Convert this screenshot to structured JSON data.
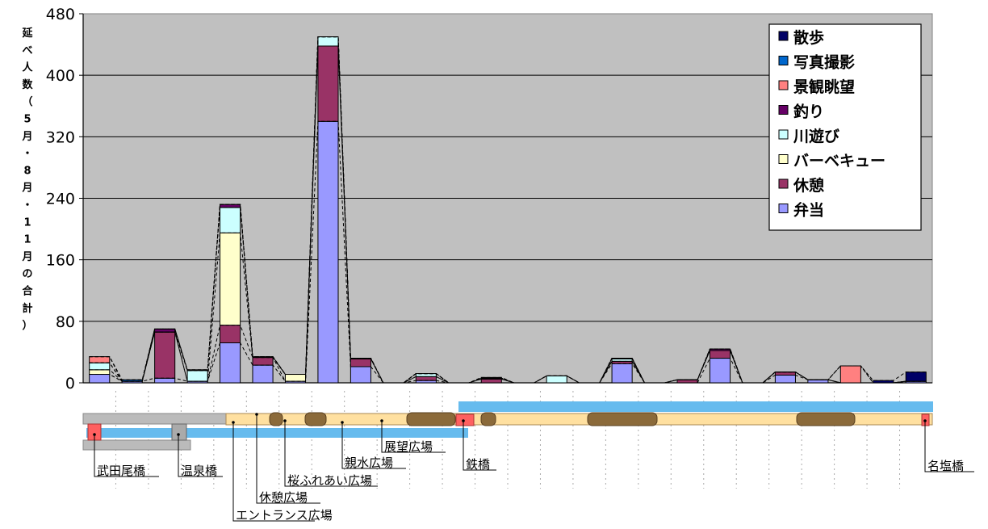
{
  "chart_data": {
    "type": "bar",
    "stacked": true,
    "ylabel": "延べ人数（5月・8月・11月の合計）",
    "ylim": [
      0,
      480
    ],
    "yticks": [
      "0",
      "80",
      "160",
      "240",
      "320",
      "400",
      "480"
    ],
    "grid": true,
    "legend_position": "top-right",
    "category_count": 26,
    "series": [
      {
        "name": "弁当",
        "color": "#9999ff",
        "values": [
          11,
          2,
          6,
          2,
          52,
          23,
          2,
          340,
          21,
          0,
          3,
          0,
          0,
          0,
          0,
          0,
          25,
          0,
          0,
          32,
          0,
          10,
          4,
          0,
          0,
          2
        ]
      },
      {
        "name": "休憩",
        "color": "#993366",
        "values": [
          0,
          0,
          60,
          0,
          23,
          10,
          0,
          98,
          10,
          0,
          5,
          0,
          5,
          0,
          0,
          0,
          3,
          0,
          4,
          10,
          0,
          4,
          0,
          0,
          0,
          0
        ]
      },
      {
        "name": "バーベキュー",
        "color": "#ffffcc",
        "values": [
          6,
          0,
          0,
          0,
          120,
          0,
          9,
          0,
          0,
          0,
          0,
          0,
          0,
          0,
          0,
          0,
          0,
          0,
          0,
          0,
          0,
          0,
          0,
          0,
          0,
          0
        ]
      },
      {
        "name": "川遊び",
        "color": "#ccffff",
        "values": [
          9,
          0,
          0,
          14,
          33,
          0,
          0,
          12,
          0,
          0,
          4,
          0,
          0,
          0,
          9,
          0,
          3,
          0,
          0,
          0,
          0,
          0,
          0,
          0,
          0,
          0
        ]
      },
      {
        "name": "釣り",
        "color": "#660066",
        "values": [
          0,
          0,
          4,
          0,
          4,
          1,
          0,
          0,
          1,
          0,
          0,
          0,
          1,
          0,
          0,
          0,
          1,
          0,
          0,
          2,
          0,
          0,
          0,
          0,
          0,
          0
        ]
      },
      {
        "name": "景観眺望",
        "color": "#ff8080",
        "values": [
          8,
          0,
          0,
          0,
          0,
          0,
          0,
          0,
          0,
          0,
          0,
          0,
          0,
          0,
          0,
          0,
          0,
          0,
          0,
          0,
          0,
          0,
          0,
          22,
          0,
          0
        ]
      },
      {
        "name": "写真撮影",
        "color": "#0066cc",
        "values": [
          0,
          2,
          0,
          1,
          0,
          0,
          0,
          0,
          0,
          0,
          0,
          0,
          0,
          0,
          0,
          0,
          0,
          0,
          0,
          0,
          0,
          0,
          0,
          0,
          0,
          0
        ]
      },
      {
        "name": "散歩",
        "color": "#000066",
        "values": [
          0,
          0,
          0,
          0,
          0,
          0,
          0,
          0,
          0,
          0,
          0,
          0,
          1,
          0,
          0,
          0,
          0,
          0,
          0,
          0,
          0,
          0,
          0,
          0,
          3,
          12
        ]
      }
    ],
    "legend_order": [
      "散歩",
      "写真撮影",
      "景観眺望",
      "釣り",
      "川遊び",
      "バーベキュー",
      "休憩",
      "弁当"
    ]
  },
  "map": {
    "locations": [
      "武田尾橋",
      "温泉橋",
      "エントランス広場",
      "休憩広場",
      "桜ふれあい広場",
      "親水広場",
      "展望広場",
      "鉄橋",
      "名塩橋"
    ],
    "colors": {
      "path": "#ffe0a0",
      "river": "#66bbee",
      "road": "#bbbbbb",
      "tunnel": "#8b6a3a",
      "bridge": "#ff6060"
    }
  }
}
